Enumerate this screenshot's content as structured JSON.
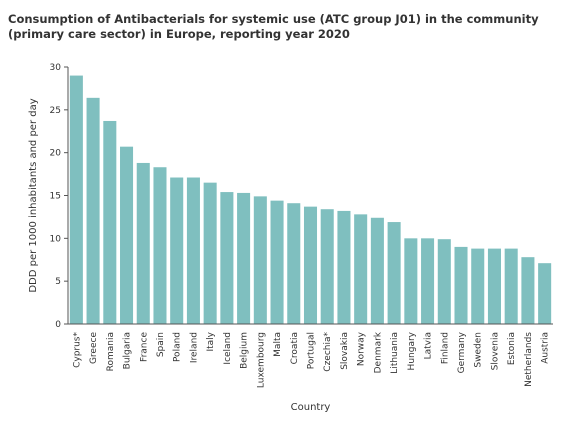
{
  "chart_data": {
    "type": "bar",
    "title": "Consumption of Antibacterials for systemic use (ATC group J01) in the community (primary care sector) in Europe, reporting year 2020",
    "xlabel": "Country",
    "ylabel": "DDD per 1000 inhabitants and per day",
    "ylim": [
      0,
      30
    ],
    "yticks": [
      0,
      5,
      10,
      15,
      20,
      25,
      30
    ],
    "grid": false,
    "bar_color": "#7fbfbf",
    "categories": [
      "Cyprus*",
      "Greece",
      "Romania",
      "Bulgaria",
      "France",
      "Spain",
      "Poland",
      "Ireland",
      "Italy",
      "Iceland",
      "Belgium",
      "Luxembourg",
      "Malta",
      "Croatia",
      "Portugal",
      "Czechia*",
      "Slovakia",
      "Norway",
      "Denmark",
      "Lithuania",
      "Hungary",
      "Latvia",
      "Finland",
      "Germany",
      "Sweden",
      "Slovenia",
      "Estonia",
      "Netherlands",
      "Austria"
    ],
    "values": [
      29.0,
      26.4,
      23.7,
      20.7,
      18.8,
      18.3,
      17.1,
      17.1,
      16.5,
      15.4,
      15.3,
      14.9,
      14.4,
      14.1,
      13.7,
      13.4,
      13.2,
      12.8,
      12.4,
      11.9,
      10.0,
      10.0,
      9.9,
      9.0,
      8.8,
      8.8,
      8.8,
      7.8,
      7.1
    ]
  }
}
